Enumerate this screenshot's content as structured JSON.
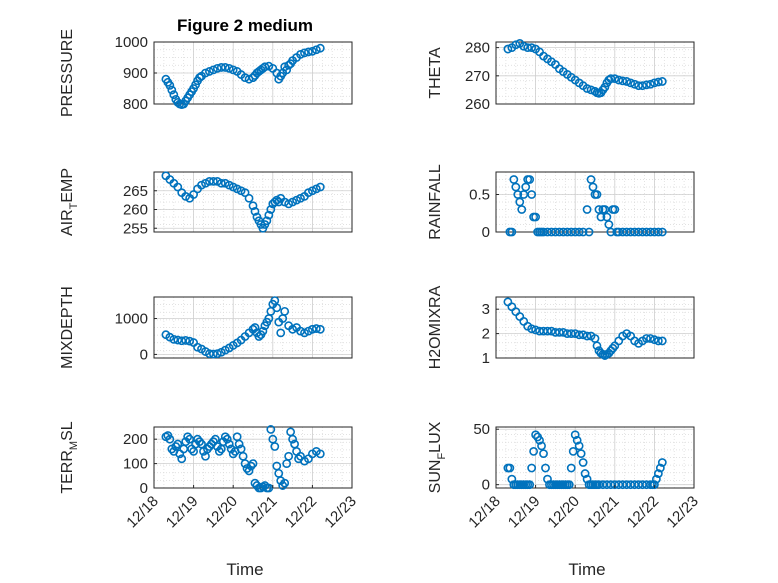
{
  "figure": {
    "title": "Figure 2 medium",
    "xlabel": "Time",
    "xticks": [
      "12/18",
      "12/19",
      "12/20",
      "12/21",
      "12/22",
      "12/23"
    ],
    "marker_color": "#0072bd"
  },
  "chart_data": [
    {
      "type": "scatter",
      "id": "pressure",
      "ylabel": "PRESSURE",
      "ylabel_sub": "",
      "ylabel_post": "",
      "ylim": [
        800,
        1000
      ],
      "yticks": [
        800,
        900,
        1000
      ],
      "xlim": [
        0,
        5
      ],
      "x": [
        0.3,
        0.35,
        0.4,
        0.45,
        0.5,
        0.55,
        0.6,
        0.65,
        0.7,
        0.75,
        0.8,
        0.85,
        0.9,
        0.95,
        1.0,
        1.05,
        1.1,
        1.15,
        1.2,
        1.3,
        1.4,
        1.5,
        1.6,
        1.7,
        1.8,
        1.9,
        2.0,
        2.1,
        2.2,
        2.3,
        2.4,
        2.5,
        2.55,
        2.6,
        2.65,
        2.7,
        2.75,
        2.8,
        2.9,
        3.0,
        3.1,
        3.15,
        3.2,
        3.25,
        3.3,
        3.35,
        3.4,
        3.45,
        3.5,
        3.6,
        3.7,
        3.8,
        3.9,
        4.0,
        4.1,
        4.2
      ],
      "y": [
        880,
        870,
        860,
        845,
        830,
        815,
        805,
        800,
        798,
        800,
        810,
        820,
        830,
        840,
        850,
        862,
        875,
        885,
        890,
        900,
        905,
        910,
        915,
        918,
        918,
        915,
        910,
        905,
        895,
        885,
        880,
        885,
        892,
        900,
        905,
        910,
        915,
        920,
        922,
        915,
        900,
        880,
        890,
        900,
        920,
        910,
        925,
        930,
        940,
        950,
        960,
        965,
        968,
        970,
        975,
        980
      ]
    },
    {
      "type": "scatter",
      "id": "theta",
      "ylabel": "THETA",
      "ylabel_sub": "",
      "ylabel_post": "",
      "ylim": [
        260,
        282
      ],
      "yticks": [
        260,
        270,
        280
      ],
      "xlim": [
        0,
        5
      ],
      "x": [
        0.3,
        0.4,
        0.5,
        0.6,
        0.7,
        0.8,
        0.9,
        1.0,
        1.1,
        1.2,
        1.3,
        1.4,
        1.5,
        1.6,
        1.7,
        1.8,
        1.9,
        2.0,
        2.1,
        2.2,
        2.3,
        2.4,
        2.5,
        2.55,
        2.6,
        2.65,
        2.7,
        2.75,
        2.8,
        2.85,
        2.9,
        3.0,
        3.1,
        3.2,
        3.3,
        3.4,
        3.5,
        3.6,
        3.7,
        3.8,
        3.9,
        4.0,
        4.1,
        4.2
      ],
      "y": [
        279.5,
        280,
        281,
        281.5,
        280.5,
        280,
        280,
        279.5,
        278.5,
        277,
        276,
        275,
        274,
        272.5,
        271.5,
        270.5,
        269.5,
        268.5,
        267.5,
        266.5,
        265.5,
        265,
        264.5,
        264,
        263.8,
        264,
        265,
        266,
        267.5,
        268.5,
        269,
        269,
        268.5,
        268.2,
        268,
        267.5,
        267,
        266.5,
        266.5,
        266.8,
        267,
        267.5,
        267.8,
        268
      ]
    },
    {
      "type": "scatter",
      "id": "air_temp",
      "ylabel": "AIR",
      "ylabel_sub": "T",
      "ylabel_post": "EMP",
      "ylim": [
        254,
        270
      ],
      "yticks": [
        255,
        260,
        265
      ],
      "xlim": [
        0,
        5
      ],
      "x": [
        0.3,
        0.4,
        0.5,
        0.6,
        0.7,
        0.8,
        0.9,
        1.0,
        1.1,
        1.2,
        1.3,
        1.4,
        1.5,
        1.6,
        1.7,
        1.8,
        1.9,
        2.0,
        2.1,
        2.2,
        2.3,
        2.4,
        2.5,
        2.55,
        2.6,
        2.65,
        2.7,
        2.75,
        2.8,
        2.85,
        2.9,
        2.95,
        3.0,
        3.05,
        3.1,
        3.15,
        3.2,
        3.3,
        3.4,
        3.5,
        3.6,
        3.7,
        3.8,
        3.9,
        4.0,
        4.1,
        4.2
      ],
      "y": [
        269,
        268,
        267,
        266,
        264.5,
        263.5,
        263,
        264,
        265.5,
        266.5,
        267,
        267.5,
        267.5,
        267.5,
        267,
        267,
        266.5,
        266,
        265.5,
        265,
        264.5,
        263,
        261,
        259.5,
        258,
        257,
        256,
        255,
        256,
        257,
        258.5,
        260,
        261.5,
        262,
        262.5,
        262,
        263,
        262,
        261.5,
        262,
        262.5,
        263,
        263.5,
        264.5,
        265,
        265.5,
        266
      ]
    },
    {
      "type": "scatter",
      "id": "rainfall",
      "ylabel": "RAINFALL",
      "ylabel_sub": "",
      "ylabel_post": "",
      "ylim": [
        0,
        0.8
      ],
      "yticks": [
        0,
        0.5
      ],
      "xlim": [
        0,
        5
      ],
      "x": [
        0.35,
        0.4,
        0.45,
        0.5,
        0.55,
        0.6,
        0.65,
        0.7,
        0.75,
        0.8,
        0.85,
        0.9,
        0.95,
        1.0,
        1.05,
        1.1,
        1.15,
        1.2,
        1.3,
        1.4,
        1.5,
        1.6,
        1.7,
        1.8,
        1.9,
        2.0,
        2.1,
        2.2,
        2.3,
        2.35,
        2.4,
        2.45,
        2.5,
        2.55,
        2.6,
        2.65,
        2.7,
        2.75,
        2.8,
        2.85,
        2.9,
        2.95,
        3.0,
        3.05,
        3.1,
        3.2,
        3.3,
        3.4,
        3.5,
        3.6,
        3.7,
        3.8,
        3.9,
        4.0,
        4.1,
        4.2
      ],
      "y": [
        0,
        0,
        0.7,
        0.6,
        0.5,
        0.4,
        0.3,
        0.5,
        0.6,
        0.7,
        0.7,
        0.5,
        0.2,
        0.2,
        0,
        0,
        0,
        0,
        0,
        0,
        0,
        0,
        0,
        0,
        0,
        0,
        0,
        0,
        0.3,
        0,
        0.7,
        0.6,
        0.5,
        0.5,
        0.3,
        0.2,
        0.3,
        0.3,
        0.2,
        0.1,
        0,
        0.3,
        0.3,
        0,
        0,
        0,
        0,
        0,
        0,
        0,
        0,
        0,
        0,
        0,
        0,
        0
      ]
    },
    {
      "type": "scatter",
      "id": "mixdepth",
      "ylabel": "MIXDEPTH",
      "ylabel_sub": "",
      "ylabel_post": "",
      "ylim": [
        -100,
        1600
      ],
      "yticks": [
        0,
        1000
      ],
      "xlim": [
        0,
        5
      ],
      "x": [
        0.3,
        0.4,
        0.5,
        0.6,
        0.7,
        0.8,
        0.9,
        1.0,
        1.1,
        1.2,
        1.3,
        1.4,
        1.5,
        1.6,
        1.7,
        1.8,
        1.9,
        2.0,
        2.1,
        2.2,
        2.3,
        2.4,
        2.5,
        2.55,
        2.6,
        2.65,
        2.7,
        2.75,
        2.8,
        2.85,
        2.9,
        2.95,
        3.0,
        3.05,
        3.1,
        3.15,
        3.2,
        3.25,
        3.3,
        3.4,
        3.5,
        3.6,
        3.7,
        3.8,
        3.9,
        4.0,
        4.1,
        4.2
      ],
      "y": [
        550,
        480,
        420,
        400,
        380,
        390,
        370,
        330,
        200,
        150,
        80,
        20,
        10,
        20,
        60,
        120,
        180,
        250,
        320,
        400,
        500,
        600,
        700,
        750,
        600,
        500,
        550,
        650,
        800,
        900,
        1000,
        1200,
        1400,
        1500,
        1300,
        900,
        600,
        1000,
        1200,
        800,
        700,
        750,
        650,
        600,
        650,
        700,
        720,
        700
      ]
    },
    {
      "type": "scatter",
      "id": "h2omixra",
      "ylabel": "H2OMIXRA",
      "ylabel_sub": "",
      "ylabel_post": "",
      "ylim": [
        1,
        3.5
      ],
      "yticks": [
        1,
        2,
        3
      ],
      "xlim": [
        0,
        5
      ],
      "x": [
        0.3,
        0.4,
        0.5,
        0.6,
        0.7,
        0.8,
        0.9,
        1.0,
        1.1,
        1.2,
        1.3,
        1.4,
        1.5,
        1.6,
        1.7,
        1.8,
        1.9,
        2.0,
        2.1,
        2.2,
        2.3,
        2.4,
        2.5,
        2.55,
        2.6,
        2.65,
        2.7,
        2.75,
        2.8,
        2.85,
        2.9,
        2.95,
        3.0,
        3.1,
        3.2,
        3.3,
        3.4,
        3.5,
        3.6,
        3.7,
        3.8,
        3.9,
        4.0,
        4.1,
        4.2
      ],
      "y": [
        3.3,
        3.1,
        2.9,
        2.7,
        2.5,
        2.3,
        2.2,
        2.15,
        2.1,
        2.1,
        2.1,
        2.1,
        2.05,
        2.05,
        2.05,
        2.0,
        2.0,
        2.0,
        1.95,
        1.95,
        1.9,
        1.9,
        1.8,
        1.5,
        1.3,
        1.2,
        1.15,
        1.1,
        1.15,
        1.2,
        1.3,
        1.4,
        1.5,
        1.7,
        1.9,
        2.0,
        1.9,
        1.7,
        1.6,
        1.7,
        1.8,
        1.8,
        1.75,
        1.7,
        1.7
      ]
    },
    {
      "type": "scatter",
      "id": "terr_msl",
      "ylabel": "TERR",
      "ylabel_sub": "M",
      "ylabel_post": "SL",
      "ylim": [
        0,
        250
      ],
      "yticks": [
        0,
        100,
        200
      ],
      "xlim": [
        0,
        5
      ],
      "x": [
        0.3,
        0.35,
        0.4,
        0.45,
        0.5,
        0.55,
        0.6,
        0.65,
        0.7,
        0.75,
        0.8,
        0.85,
        0.9,
        0.95,
        1.0,
        1.05,
        1.1,
        1.15,
        1.2,
        1.25,
        1.3,
        1.35,
        1.4,
        1.45,
        1.5,
        1.55,
        1.6,
        1.65,
        1.7,
        1.75,
        1.8,
        1.85,
        1.9,
        1.95,
        2.0,
        2.05,
        2.1,
        2.15,
        2.2,
        2.25,
        2.3,
        2.35,
        2.4,
        2.45,
        2.5,
        2.55,
        2.6,
        2.65,
        2.7,
        2.75,
        2.8,
        2.85,
        2.9,
        2.95,
        3.0,
        3.05,
        3.1,
        3.15,
        3.2,
        3.25,
        3.3,
        3.35,
        3.4,
        3.45,
        3.5,
        3.55,
        3.6,
        3.65,
        3.7,
        3.8,
        3.9,
        4.0,
        4.1,
        4.2
      ],
      "y": [
        210,
        215,
        200,
        160,
        150,
        170,
        180,
        140,
        120,
        160,
        190,
        210,
        200,
        160,
        150,
        180,
        200,
        190,
        180,
        150,
        130,
        160,
        170,
        180,
        190,
        200,
        170,
        150,
        160,
        190,
        210,
        200,
        180,
        160,
        140,
        150,
        210,
        180,
        160,
        130,
        100,
        80,
        70,
        90,
        100,
        20,
        10,
        0,
        0,
        5,
        10,
        0,
        0,
        240,
        200,
        170,
        90,
        60,
        30,
        10,
        20,
        100,
        130,
        230,
        200,
        180,
        150,
        120,
        130,
        110,
        120,
        140,
        150,
        140
      ]
    },
    {
      "type": "scatter",
      "id": "sun_flux",
      "ylabel": "SUN",
      "ylabel_sub": "F",
      "ylabel_post": "LUX",
      "ylim": [
        -3,
        52
      ],
      "yticks": [
        0,
        50
      ],
      "xlim": [
        0,
        5
      ],
      "x": [
        0.3,
        0.35,
        0.4,
        0.45,
        0.5,
        0.55,
        0.6,
        0.65,
        0.7,
        0.75,
        0.8,
        0.85,
        0.9,
        0.95,
        1.0,
        1.05,
        1.1,
        1.15,
        1.2,
        1.25,
        1.3,
        1.35,
        1.4,
        1.45,
        1.5,
        1.55,
        1.6,
        1.65,
        1.7,
        1.75,
        1.8,
        1.85,
        1.9,
        1.95,
        2.0,
        2.05,
        2.1,
        2.15,
        2.2,
        2.25,
        2.3,
        2.35,
        2.4,
        2.45,
        2.5,
        2.55,
        2.6,
        2.7,
        2.8,
        2.9,
        3.0,
        3.1,
        3.2,
        3.3,
        3.4,
        3.5,
        3.6,
        3.7,
        3.8,
        3.9,
        3.95,
        4.0,
        4.05,
        4.1,
        4.15,
        4.2
      ],
      "y": [
        15,
        15,
        5,
        0,
        0,
        0,
        0,
        0,
        0,
        0,
        0,
        0,
        15,
        30,
        45,
        43,
        40,
        35,
        28,
        15,
        5,
        0,
        0,
        0,
        0,
        0,
        0,
        0,
        0,
        0,
        0,
        0,
        15,
        30,
        45,
        40,
        35,
        28,
        20,
        10,
        5,
        0,
        0,
        0,
        0,
        0,
        0,
        0,
        0,
        0,
        0,
        0,
        0,
        0,
        0,
        0,
        0,
        0,
        0,
        0,
        0,
        0,
        5,
        10,
        15,
        20
      ]
    }
  ]
}
